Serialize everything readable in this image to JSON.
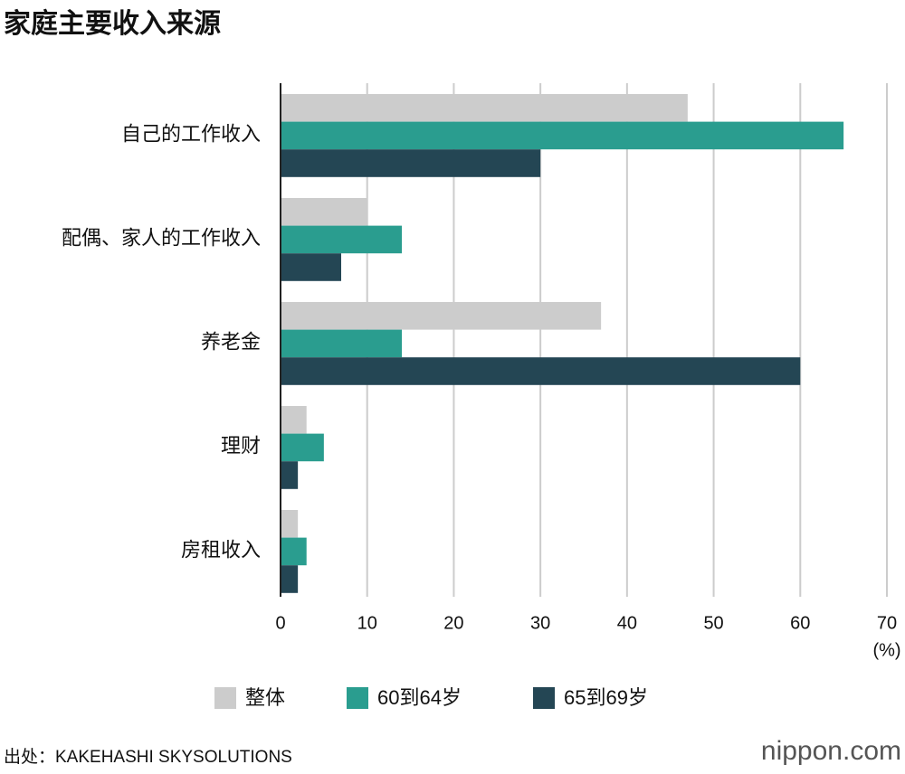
{
  "chart_data": {
    "type": "bar",
    "orientation": "horizontal",
    "title": "家庭主要收入来源",
    "categories": [
      "自己的工作收入",
      "配偶、家人的工作收入",
      "养老金",
      "理财",
      "房租收入"
    ],
    "series": [
      {
        "name": "整体",
        "color": "#cccccc",
        "values": [
          47,
          10,
          37,
          3,
          2
        ]
      },
      {
        "name": "60到64岁",
        "color": "#2a9d8f",
        "values": [
          65,
          14,
          14,
          5,
          3
        ]
      },
      {
        "name": "65到69岁",
        "color": "#244654",
        "values": [
          30,
          7,
          60,
          2,
          2
        ]
      }
    ],
    "xlim": [
      0,
      70
    ],
    "xticks": [
      0,
      10,
      20,
      30,
      40,
      50,
      60,
      70
    ],
    "x_unit": "(%)",
    "grid": true,
    "legend": "bottom",
    "source": "出处：KAKEHASHI SKYSOLUTIONS",
    "brand": "nippon.com"
  }
}
